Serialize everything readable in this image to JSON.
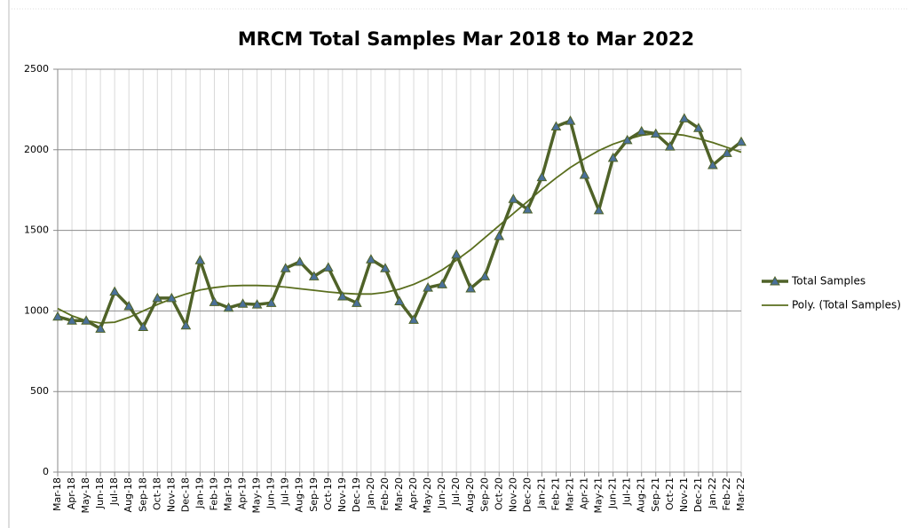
{
  "chart_data": {
    "type": "line",
    "title": "MRCM Total Samples Mar 2018 to Mar 2022",
    "categories": [
      "Mar-18",
      "Apr-18",
      "May-18",
      "Jun-18",
      "Jul-18",
      "Aug-18",
      "Sep-18",
      "Oct-18",
      "Nov-18",
      "Dec-18",
      "Jan-19",
      "Feb-19",
      "Mar-19",
      "Apr-19",
      "May-19",
      "Jun-19",
      "Jul-19",
      "Aug-19",
      "Sep-19",
      "Oct-19",
      "Nov-19",
      "Dec-19",
      "Jan-20",
      "Feb-20",
      "Mar-20",
      "Apr-20",
      "May-20",
      "Jun-20",
      "Jul-20",
      "Aug-20",
      "Sep-20",
      "Oct-20",
      "Nov-20",
      "Dec-20",
      "Jan-21",
      "Feb-21",
      "Mar-21",
      "Apr-21",
      "May-21",
      "Jun-21",
      "Jul-21",
      "Aug-21",
      "Sep-21",
      "Oct-21",
      "Nov-21",
      "Dec-21",
      "Jan-22",
      "Feb-22",
      "Mar-22"
    ],
    "series": [
      {
        "name": "Total Samples",
        "color": "#4f6228",
        "marker": "triangle",
        "marker_color": "#4a7099",
        "values": [
          965,
          940,
          940,
          890,
          1120,
          1030,
          900,
          1080,
          1080,
          910,
          1315,
          1055,
          1020,
          1045,
          1040,
          1050,
          1265,
          1305,
          1215,
          1270,
          1090,
          1050,
          1320,
          1265,
          1060,
          945,
          1145,
          1165,
          1350,
          1140,
          1215,
          1465,
          1695,
          1630,
          1830,
          2145,
          2180,
          1845,
          1625,
          1950,
          2060,
          2115,
          2100,
          2020,
          2195,
          2135,
          1905,
          1980,
          2050
        ]
      },
      {
        "name": "Poly. (Total Samples)",
        "color": "#5a6e1e",
        "values": [
          1015,
          970,
          940,
          925,
          930,
          960,
          1000,
          1040,
          1075,
          1105,
          1130,
          1145,
          1155,
          1158,
          1158,
          1155,
          1148,
          1138,
          1128,
          1118,
          1110,
          1105,
          1105,
          1115,
          1135,
          1165,
          1205,
          1255,
          1315,
          1380,
          1455,
          1530,
          1605,
          1680,
          1755,
          1825,
          1890,
          1945,
          1995,
          2035,
          2065,
          2090,
          2100,
          2100,
          2090,
          2070,
          2045,
          2015,
          1985
        ]
      }
    ],
    "ylim": [
      0,
      2500
    ],
    "yticks": [
      0,
      500,
      1000,
      1500,
      2000,
      2500
    ],
    "grid": true,
    "legend": "right"
  }
}
